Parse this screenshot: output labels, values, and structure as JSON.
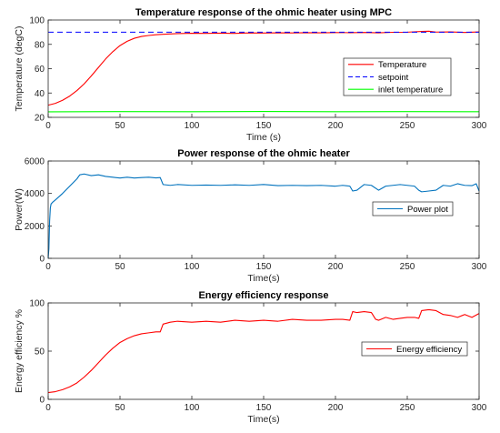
{
  "chart_data": [
    {
      "type": "line",
      "title": "Temperature response of the ohmic heater using MPC",
      "xlabel": "Time (s)",
      "ylabel": "Temperature (degC)",
      "xlim": [
        0,
        300
      ],
      "ylim": [
        20,
        100
      ],
      "xticks": [
        "0",
        "50",
        "100",
        "150",
        "200",
        "250",
        "300"
      ],
      "yticks": [
        "20",
        "40",
        "60",
        "80",
        "100"
      ],
      "legend_position": "right",
      "grid": false,
      "series": [
        {
          "name": "Temperature",
          "color": "#ff0000",
          "dash": "solid",
          "x": [
            0,
            5,
            10,
            15,
            20,
            25,
            30,
            35,
            40,
            45,
            50,
            55,
            60,
            65,
            70,
            75,
            80,
            90,
            100,
            110,
            120,
            130,
            140,
            150,
            160,
            170,
            180,
            190,
            200,
            210,
            220,
            230,
            240,
            250,
            260,
            265,
            270,
            280,
            290,
            300
          ],
          "y": [
            30,
            31.5,
            34,
            37.5,
            42,
            47.5,
            54,
            61,
            68,
            74,
            79,
            82.5,
            85,
            86.5,
            87.3,
            87.9,
            88.3,
            88.8,
            89.1,
            89,
            89.2,
            89,
            89.4,
            89.3,
            89.5,
            89.4,
            89.6,
            89.5,
            89.7,
            89.6,
            89.8,
            89.5,
            89.9,
            90,
            90.6,
            90.8,
            90.1,
            90.2,
            89.8,
            90.2
          ]
        },
        {
          "name": "setpoint",
          "color": "#0000ff",
          "dash": "dashed",
          "x": [
            0,
            300
          ],
          "y": [
            90,
            90
          ]
        },
        {
          "name": "inlet temperature",
          "color": "#00ff00",
          "dash": "solid",
          "x": [
            0,
            50,
            100,
            150,
            200,
            250,
            300
          ],
          "y": [
            24.5,
            24.7,
            24.6,
            24.8,
            24.6,
            24.7,
            24.6
          ]
        }
      ]
    },
    {
      "type": "line",
      "title": "Power response of the ohmic heater",
      "xlabel": "Time(s)",
      "ylabel": "Power(W)",
      "xlim": [
        0,
        300
      ],
      "ylim": [
        0,
        6000
      ],
      "xticks": [
        "0",
        "50",
        "100",
        "150",
        "200",
        "250",
        "300"
      ],
      "yticks": [
        "0",
        "2000",
        "4000",
        "6000"
      ],
      "legend_position": "right",
      "grid": false,
      "series": [
        {
          "name": "Power plot",
          "color": "#0072bd",
          "dash": "solid",
          "x": [
            0,
            0.5,
            1,
            1.5,
            2,
            3,
            5,
            10,
            15,
            20,
            22,
            25,
            30,
            35,
            40,
            45,
            50,
            55,
            60,
            65,
            70,
            75,
            78,
            80,
            85,
            90,
            100,
            110,
            120,
            130,
            140,
            150,
            160,
            170,
            180,
            190,
            200,
            205,
            210,
            212,
            215,
            220,
            225,
            230,
            235,
            240,
            245,
            250,
            255,
            258,
            260,
            265,
            270,
            275,
            280,
            285,
            290,
            295,
            298,
            300
          ],
          "y": [
            0,
            600,
            2300,
            3100,
            3350,
            3450,
            3600,
            4000,
            4450,
            4900,
            5150,
            5200,
            5100,
            5150,
            5050,
            5000,
            4950,
            5000,
            4950,
            4980,
            5000,
            4960,
            4980,
            4550,
            4500,
            4550,
            4500,
            4520,
            4500,
            4530,
            4500,
            4550,
            4480,
            4500,
            4480,
            4500,
            4450,
            4500,
            4450,
            4150,
            4200,
            4550,
            4500,
            4200,
            4450,
            4500,
            4550,
            4500,
            4450,
            4200,
            4100,
            4150,
            4200,
            4500,
            4450,
            4600,
            4500,
            4480,
            4600,
            4150
          ]
        }
      ]
    },
    {
      "type": "line",
      "title": "Energy efficiency response",
      "xlabel": "Time(s)",
      "ylabel": "Energy efficiency %",
      "xlim": [
        0,
        300
      ],
      "ylim": [
        0,
        100
      ],
      "xticks": [
        "0",
        "50",
        "100",
        "150",
        "200",
        "250",
        "300"
      ],
      "yticks": [
        "0",
        "50",
        "100"
      ],
      "legend_position": "right",
      "grid": false,
      "series": [
        {
          "name": "Energy efficiency",
          "color": "#ff0000",
          "dash": "solid",
          "x": [
            0,
            5,
            10,
            15,
            20,
            25,
            30,
            35,
            40,
            45,
            50,
            55,
            60,
            65,
            70,
            75,
            78,
            80,
            85,
            90,
            100,
            110,
            120,
            130,
            140,
            150,
            160,
            170,
            180,
            190,
            200,
            205,
            210,
            212,
            215,
            220,
            225,
            228,
            230,
            235,
            240,
            245,
            250,
            255,
            258,
            260,
            265,
            270,
            275,
            280,
            285,
            290,
            295,
            300
          ],
          "y": [
            7,
            8,
            10,
            13,
            17,
            23,
            30,
            38,
            46,
            53,
            59,
            63,
            66,
            68,
            69,
            70,
            70,
            78,
            80,
            81,
            80,
            81,
            80,
            82,
            81,
            82,
            81,
            83,
            82,
            82,
            83,
            83,
            82,
            91,
            90,
            91,
            90,
            83,
            82,
            85,
            83,
            84,
            85,
            85,
            84,
            92,
            93,
            92,
            88,
            87,
            85,
            88,
            85,
            89
          ]
        }
      ]
    }
  ]
}
